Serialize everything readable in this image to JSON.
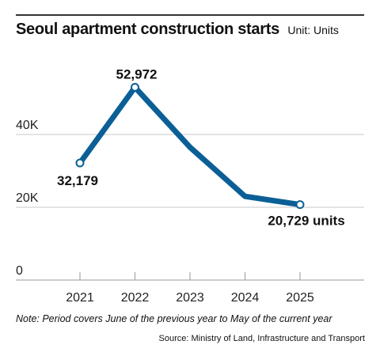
{
  "header": {
    "title": "Seoul apartment construction starts",
    "unit": "Unit: Units"
  },
  "footer": {
    "note": "Note: Period covers June of the previous year to May of the current year",
    "source": "Source: Ministry of Land, Infrastructure and Transport"
  },
  "colors": {
    "line": "#0b5f96",
    "grid": "#c8c8c8",
    "marker_fill": "#ffffff"
  },
  "chart_data": {
    "type": "line",
    "title": "Seoul apartment construction starts",
    "subtitle": "Unit: Units",
    "categories": [
      "2021",
      "2022",
      "2023",
      "2024",
      "2025"
    ],
    "series": [
      {
        "values": [
          32179,
          52972,
          36500,
          23000,
          20729
        ]
      }
    ],
    "data_labels": [
      {
        "index": 0,
        "text": "32,179"
      },
      {
        "index": 1,
        "text": "52,972"
      },
      {
        "index": 4,
        "text": "20,729 units"
      }
    ],
    "y_ticks": [
      {
        "value": 0,
        "label": "0"
      },
      {
        "value": 20000,
        "label": "20K"
      },
      {
        "value": 40000,
        "label": "40K"
      }
    ],
    "ylim": [
      0,
      60000
    ],
    "grid": true,
    "legend": "none"
  }
}
